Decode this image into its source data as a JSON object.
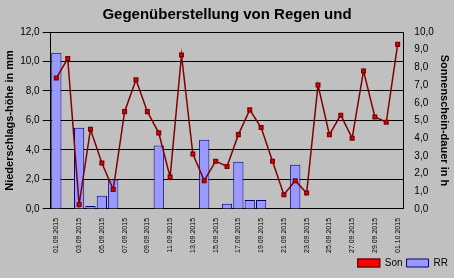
{
  "chart_data": {
    "type": "bar",
    "title": "Gegenüberstellung von Regen und",
    "y_label": "Niederschlags-höhe in mm",
    "y2_label": "Sonnenschein-dauer in h",
    "categories": [
      "01.09.2015",
      null,
      "03.09.2015",
      null,
      "05.09.2015",
      null,
      "07.09.2015",
      null,
      "09.09.2015",
      null,
      "11.09.2015",
      null,
      "13.09.2015",
      null,
      "15.09.2015",
      null,
      "17.09.2015",
      null,
      "19.09.2015",
      null,
      "21.09.2015",
      null,
      "23.09.2015",
      null,
      "25.09.2015",
      null,
      "27.09.2015",
      null,
      "29.09.2015",
      null,
      "01.10.2015"
    ],
    "series": [
      {
        "name": "RR",
        "type": "bar",
        "color": "#9999ff",
        "values": [
          10.6,
          0,
          5.5,
          0.2,
          0.9,
          2.0,
          0,
          0,
          0,
          4.3,
          0,
          0,
          0,
          4.7,
          0,
          0.35,
          3.2,
          0.6,
          0.6,
          0,
          0,
          3.0,
          0,
          0,
          0,
          0,
          0,
          0,
          0,
          0,
          0
        ]
      },
      {
        "name": "Son",
        "type": "line",
        "color": "#800000",
        "marker": "square",
        "axis": "y2",
        "values": [
          7.4,
          8.5,
          0.25,
          4.5,
          2.6,
          1.1,
          5.5,
          7.3,
          5.5,
          4.3,
          1.8,
          8.7,
          3.1,
          1.6,
          2.7,
          2.4,
          4.2,
          5.6,
          4.6,
          2.7,
          0.8,
          1.6,
          0.9,
          7.0,
          4.2,
          5.3,
          4.0,
          7.8,
          5.2,
          4.9,
          9.3
        ]
      }
    ],
    "ylim": [
      0,
      12
    ],
    "yticks": [
      {
        "value": 0,
        "label": "0,0"
      },
      {
        "value": 2,
        "label": "2,0"
      },
      {
        "value": 4,
        "label": "4,0"
      },
      {
        "value": 6,
        "label": "6,0"
      },
      {
        "value": 8,
        "label": "8,0"
      },
      {
        "value": 10,
        "label": "10,0"
      },
      {
        "value": 12,
        "label": "12,0"
      }
    ],
    "y2lim": [
      0,
      10
    ],
    "y2ticks": [
      {
        "value": 0,
        "label": "0,0"
      },
      {
        "value": 1,
        "label": "1,0"
      },
      {
        "value": 2,
        "label": "2,0"
      },
      {
        "value": 3,
        "label": "3,0"
      },
      {
        "value": 4,
        "label": "4,0"
      },
      {
        "value": 5,
        "label": "5,0"
      },
      {
        "value": 6,
        "label": "6,0"
      },
      {
        "value": 7,
        "label": "7,0"
      },
      {
        "value": 8,
        "label": "8,0"
      },
      {
        "value": 9,
        "label": "9,0"
      },
      {
        "value": 10,
        "label": "10,0"
      }
    ],
    "grid": true,
    "legend": "bottom-right"
  }
}
